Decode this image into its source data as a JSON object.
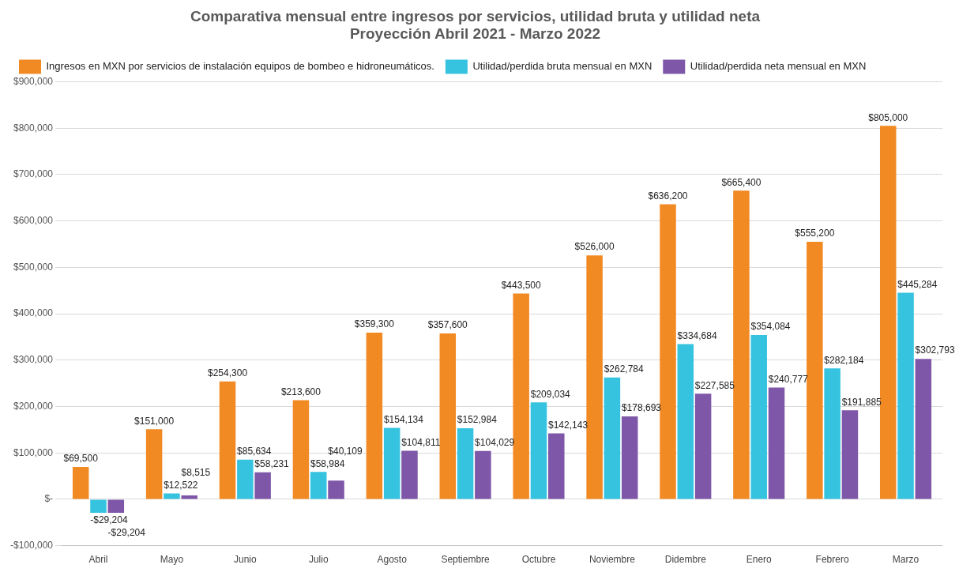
{
  "chart_data": {
    "type": "bar",
    "title": "Comparativa mensual entre ingresos por servicios, utilidad bruta y utilidad neta",
    "subtitle": "Proyección Abril 2021 - Marzo 2022",
    "categories": [
      "Abril",
      "Mayo",
      "Junio",
      "Julio",
      "Agosto",
      "Septiembre",
      "Octubre",
      "Noviembre",
      "Didembre",
      "Enero",
      "Febrero",
      "Marzo"
    ],
    "series": [
      {
        "name": "Ingresos en MXN por servicios de instalación equipos de bombeo e hidroneumáticos.",
        "color": "#f28a24",
        "values": [
          69500,
          151000,
          254300,
          213600,
          359300,
          357600,
          443500,
          526000,
          636200,
          665400,
          555200,
          805000
        ],
        "value_labels": [
          "$69,500",
          "$151,000",
          "$254,300",
          "$213,600",
          "$359,300",
          "$357,600",
          "$443,500",
          "$526,000",
          "$636,200",
          "$665,400",
          "$555,200",
          "$805,000"
        ]
      },
      {
        "name": "Utilidad/perdida bruta mensual en MXN",
        "color": "#36c3e0",
        "values": [
          -29204,
          12522,
          85634,
          58984,
          154134,
          152984,
          209034,
          262784,
          334684,
          354084,
          282184,
          445284
        ],
        "value_labels": [
          "-$29,204",
          "$12,522",
          "$85,634",
          "$58,984",
          "$154,134",
          "$152,984",
          "$209,034",
          "$262,784",
          "$334,684",
          "$354,084",
          "$282,184",
          "$445,284"
        ]
      },
      {
        "name": "Utilidad/perdida neta mensual en MXN",
        "color": "#7e57a8",
        "values": [
          -29204,
          8515,
          58231,
          40109,
          104811,
          104029,
          142143,
          178693,
          227585,
          240777,
          191885,
          302793
        ],
        "value_labels": [
          "-$29,204",
          "$8,515",
          "$58,231",
          "$40,109",
          "$104,811",
          "$104,029",
          "$142,143",
          "$178,693",
          "$227,585",
          "$240,777",
          "$191,885",
          "$302,793"
        ]
      }
    ],
    "ylim": [
      -100000,
      900000
    ],
    "yticks": [
      {
        "value": -100000,
        "label": "-$100,000"
      },
      {
        "value": 0,
        "label": "$-"
      },
      {
        "value": 100000,
        "label": "$100,000"
      },
      {
        "value": 200000,
        "label": "$200,000"
      },
      {
        "value": 300000,
        "label": "$300,000"
      },
      {
        "value": 400000,
        "label": "$400,000"
      },
      {
        "value": 500000,
        "label": "$500,000"
      },
      {
        "value": 600000,
        "label": "$600,000"
      },
      {
        "value": 700000,
        "label": "$700,000"
      },
      {
        "value": 800000,
        "label": "$800,000"
      },
      {
        "value": 900000,
        "label": "$900,000"
      }
    ],
    "grid": "y",
    "legend": "top left"
  }
}
